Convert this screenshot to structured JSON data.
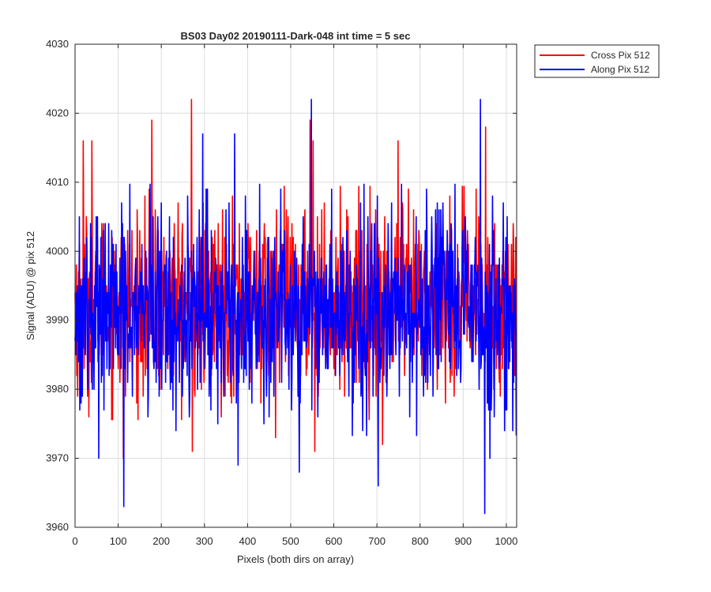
{
  "chart_data": {
    "type": "line",
    "title": "BS03 Day02 20190111-Dark-048 int time = 5 sec",
    "xlabel": "Pixels (both dirs on array)",
    "ylabel": "Signal (ADU) @ pix 512",
    "xlim": [
      0,
      1024
    ],
    "ylim": [
      3960,
      4030
    ],
    "xticks": [
      0,
      100,
      200,
      300,
      400,
      500,
      600,
      700,
      800,
      900,
      1000
    ],
    "yticks": [
      3960,
      3970,
      3980,
      3990,
      4000,
      4010,
      4020,
      4030
    ],
    "grid": true,
    "legend_position": "outside top-right",
    "series": [
      {
        "name": "Cross Pix 512",
        "color": "#ff0000",
        "mean": 3992.5,
        "std": 6.5,
        "count": 1024,
        "peaks": [
          [
            19,
            4016
          ],
          [
            39,
            4016
          ],
          [
            178,
            4019
          ],
          [
            270,
            4022
          ],
          [
            545,
            4019
          ],
          [
            552,
            4016
          ],
          [
            749,
            4016
          ],
          [
            952,
            4018
          ]
        ],
        "troughs": [
          [
            112,
            3970
          ],
          [
            272,
            3971
          ],
          [
            556,
            3971
          ],
          [
            713,
            3972
          ],
          [
            465,
            3973
          ]
        ]
      },
      {
        "name": "Along Pix 512",
        "color": "#0000ff",
        "mean": 3991.5,
        "std": 7.0,
        "count": 1024,
        "peaks": [
          [
            548,
            4022
          ],
          [
            940,
            4022
          ],
          [
            370,
            4017
          ],
          [
            296,
            4017
          ]
        ],
        "troughs": [
          [
            113,
            3963
          ],
          [
            950,
            3962
          ],
          [
            703,
            3966
          ],
          [
            520,
            3968
          ],
          [
            378,
            3969
          ],
          [
            962,
            3970
          ],
          [
            55,
            3970
          ]
        ]
      }
    ]
  }
}
